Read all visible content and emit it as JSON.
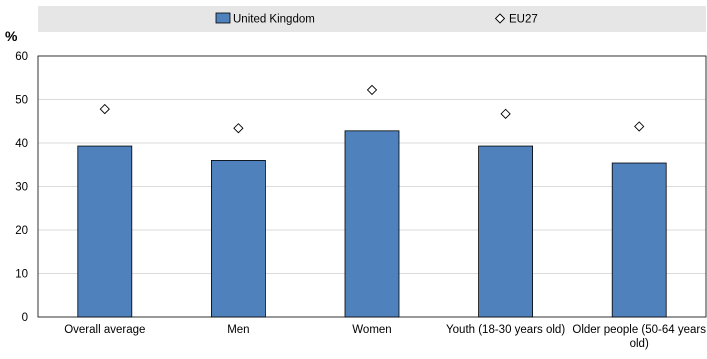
{
  "chart_data": {
    "type": "bar",
    "title": "",
    "xlabel": "",
    "ylabel": "%",
    "ylim": [
      0,
      60
    ],
    "yticks": [
      0,
      10,
      20,
      30,
      40,
      50,
      60
    ],
    "grid": true,
    "legend_position": "top",
    "categories": [
      "Overall average",
      "Men",
      "Women",
      "Youth (18-30 years old)",
      "Older people (50-64 years old)"
    ],
    "category_lines": [
      [
        "Overall average"
      ],
      [
        "Men"
      ],
      [
        "Women"
      ],
      [
        "Youth (18-30 years old)"
      ],
      [
        "Older people (50-64 years",
        "old)"
      ]
    ],
    "series": [
      {
        "name": "United Kingdom",
        "type": "bar",
        "color": "#4f81bd",
        "values": [
          39.3,
          36.0,
          42.8,
          39.3,
          35.4
        ]
      },
      {
        "name": "EU27",
        "type": "marker",
        "marker": "diamond",
        "color": "#ffffff",
        "values": [
          47.8,
          43.4,
          52.2,
          46.7,
          43.8
        ]
      }
    ]
  }
}
